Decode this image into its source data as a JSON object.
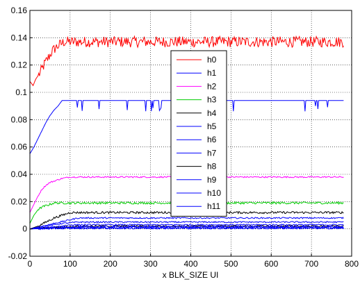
{
  "chart_data": {
    "type": "line",
    "title": "",
    "xlabel": "x BLK_SIZE UI",
    "ylabel": "",
    "xlim": [
      0,
      800
    ],
    "ylim": [
      -0.02,
      0.16
    ],
    "xticks": [
      0,
      100,
      200,
      300,
      400,
      500,
      600,
      700,
      800
    ],
    "yticks": [
      -0.02,
      0,
      0.02,
      0.04,
      0.06,
      0.08,
      0.1,
      0.12,
      0.14,
      0.16
    ],
    "ytick_labels": [
      "-0.02",
      "0",
      "0.02",
      "0.04",
      "0.06",
      "0.08",
      "0.1",
      "0.12",
      "0.14",
      "0.16"
    ],
    "grid": true,
    "legend_position": "center",
    "x_end": 780,
    "series": [
      {
        "name": "h0",
        "color": "#ff0000",
        "points": [
          [
            0,
            0.108
          ],
          [
            8,
            0.105
          ],
          [
            15,
            0.11
          ],
          [
            25,
            0.114
          ],
          [
            35,
            0.12
          ],
          [
            45,
            0.125
          ],
          [
            55,
            0.13
          ],
          [
            65,
            0.133
          ],
          [
            75,
            0.135
          ],
          [
            85,
            0.137
          ],
          [
            100,
            0.137
          ],
          [
            780,
            0.137
          ]
        ],
        "noise": 0.004
      },
      {
        "name": "h1",
        "color": "#0000ff",
        "points": [
          [
            0,
            0.055
          ],
          [
            10,
            0.06
          ],
          [
            20,
            0.066
          ],
          [
            30,
            0.072
          ],
          [
            40,
            0.078
          ],
          [
            50,
            0.083
          ],
          [
            60,
            0.087
          ],
          [
            70,
            0.09
          ],
          [
            80,
            0.094
          ],
          [
            90,
            0.094
          ],
          [
            780,
            0.094
          ]
        ],
        "noise": 0.0
      },
      {
        "name": "h2",
        "color": "#ff00ff",
        "points": [
          [
            0,
            0.012
          ],
          [
            10,
            0.018
          ],
          [
            20,
            0.024
          ],
          [
            30,
            0.029
          ],
          [
            40,
            0.032
          ],
          [
            50,
            0.034
          ],
          [
            60,
            0.035
          ],
          [
            80,
            0.037
          ],
          [
            100,
            0.038
          ],
          [
            780,
            0.038
          ]
        ],
        "noise": 0.0005
      },
      {
        "name": "h3",
        "color": "#00cc00",
        "points": [
          [
            0,
            0.004
          ],
          [
            10,
            0.01
          ],
          [
            20,
            0.014
          ],
          [
            30,
            0.016
          ],
          [
            40,
            0.017
          ],
          [
            60,
            0.019
          ],
          [
            100,
            0.019
          ],
          [
            780,
            0.019
          ]
        ],
        "noise": 0.0008
      },
      {
        "name": "h4",
        "color": "#000000",
        "points": [
          [
            0,
            0.0
          ],
          [
            20,
            0.002
          ],
          [
            40,
            0.005
          ],
          [
            60,
            0.008
          ],
          [
            80,
            0.01
          ],
          [
            100,
            0.012
          ],
          [
            780,
            0.012
          ]
        ],
        "noise": 0.0008
      },
      {
        "name": "h5",
        "color": "#0000ff",
        "points": [
          [
            0,
            0.0
          ],
          [
            30,
            0.002
          ],
          [
            60,
            0.004
          ],
          [
            90,
            0.006
          ],
          [
            120,
            0.008
          ],
          [
            780,
            0.008
          ]
        ],
        "noise": 0.0005
      },
      {
        "name": "h6",
        "color": "#0000ff",
        "points": [
          [
            0,
            0.0
          ],
          [
            40,
            0.002
          ],
          [
            80,
            0.004
          ],
          [
            120,
            0.005
          ],
          [
            780,
            0.005
          ]
        ],
        "noise": 0.0005
      },
      {
        "name": "h7",
        "color": "#0000ff",
        "points": [
          [
            0,
            0.0
          ],
          [
            50,
            0.001
          ],
          [
            100,
            0.003
          ],
          [
            780,
            0.003
          ]
        ],
        "noise": 0.0005
      },
      {
        "name": "h8",
        "color": "#000000",
        "points": [
          [
            0,
            0.0
          ],
          [
            60,
            0.001
          ],
          [
            120,
            0.002
          ],
          [
            780,
            0.002
          ]
        ],
        "noise": 0.0006
      },
      {
        "name": "h9",
        "color": "#0000ff",
        "points": [
          [
            0,
            0.0
          ],
          [
            70,
            0.001
          ],
          [
            140,
            0.0015
          ],
          [
            780,
            0.0015
          ]
        ],
        "noise": 0.0008
      },
      {
        "name": "h10",
        "color": "#0000ff",
        "points": [
          [
            0,
            0.0
          ],
          [
            100,
            0.001
          ],
          [
            780,
            0.001
          ]
        ],
        "noise": 0.0008
      },
      {
        "name": "h11",
        "color": "#0000ff",
        "points": [
          [
            0,
            0.0
          ],
          [
            100,
            0.0005
          ],
          [
            780,
            0.0005
          ]
        ],
        "noise": 0.0006
      }
    ]
  }
}
